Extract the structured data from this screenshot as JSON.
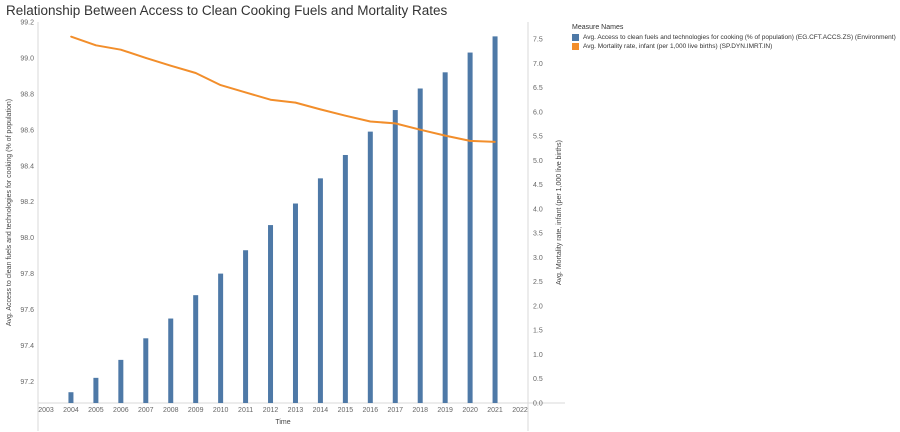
{
  "chart_data": {
    "type": "bar+line",
    "title": "Relationship Between Access to Clean Cooking Fuels and Mortality Rates",
    "xlabel": "Time",
    "x_ticks": [
      "2003",
      "2004",
      "2005",
      "2006",
      "2007",
      "2008",
      "2009",
      "2010",
      "2011",
      "2012",
      "2013",
      "2014",
      "2015",
      "2016",
      "2017",
      "2018",
      "2019",
      "2020",
      "2021",
      "2022"
    ],
    "x": [
      2004,
      2005,
      2006,
      2007,
      2008,
      2009,
      2010,
      2011,
      2012,
      2013,
      2014,
      2015,
      2016,
      2017,
      2018,
      2019,
      2020,
      2021
    ],
    "y_left": {
      "label": "Avg. Access to clean fuels and technologies for cooking (% of population)",
      "ylim": [
        97.08,
        99.2
      ],
      "ticks": [
        "97.2",
        "97.4",
        "97.6",
        "97.8",
        "98.0",
        "98.2",
        "98.4",
        "98.6",
        "98.8",
        "99.0",
        "99.2"
      ]
    },
    "y_right": {
      "label": "Avg. Mortality rate, infant (per 1,000 live births)",
      "ylim": [
        0,
        7.85
      ],
      "ticks": [
        "0.0",
        "0.5",
        "1.0",
        "1.5",
        "2.0",
        "2.5",
        "3.0",
        "3.5",
        "4.0",
        "4.5",
        "5.0",
        "5.5",
        "6.0",
        "6.5",
        "7.0",
        "7.5"
      ]
    },
    "series": [
      {
        "name": "Avg. Access to clean fuels and technologies for cooking (% of population) (EG.CFT.ACCS.ZS) (Environment)",
        "type": "bar",
        "axis": "left",
        "color": "#4e79a7",
        "values": [
          97.14,
          97.22,
          97.32,
          97.44,
          97.55,
          97.68,
          97.8,
          97.93,
          98.07,
          98.19,
          98.33,
          98.46,
          98.59,
          98.71,
          98.83,
          98.92,
          99.03,
          99.12
        ]
      },
      {
        "name": "Avg. Mortality rate, infant (per 1,000 live births) (SP.DYN.IMRT.IN)",
        "type": "line",
        "axis": "right",
        "color": "#f28e2b",
        "values": [
          7.55,
          7.37,
          7.28,
          7.11,
          6.95,
          6.8,
          6.55,
          6.4,
          6.25,
          6.19,
          6.05,
          5.92,
          5.8,
          5.76,
          5.63,
          5.51,
          5.4,
          5.38
        ]
      }
    ],
    "legend": {
      "title": "Measure Names",
      "placement": "right"
    }
  }
}
